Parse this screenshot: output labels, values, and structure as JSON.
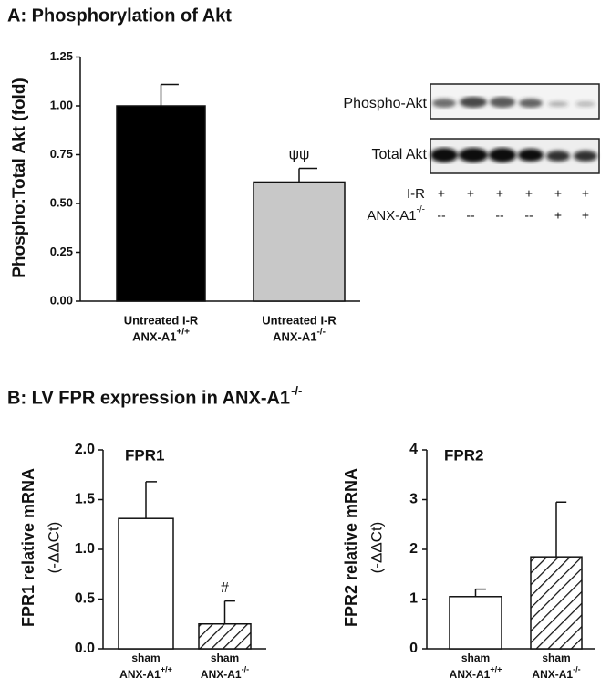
{
  "chart_data": [
    {
      "type": "bar",
      "title": "A: Phosphorylation of Akt",
      "ylabel": "Phospho:Total Akt (fold)",
      "categories": [
        [
          "Untreated I-R",
          "ANX-A1",
          "+/+"
        ],
        [
          "Untreated I-R",
          "ANX-A1",
          "-/-"
        ]
      ],
      "values": [
        1.0,
        0.61
      ],
      "errors": [
        0.11,
        0.07
      ],
      "fills": [
        "#000000",
        "#c8c8c8"
      ],
      "bar_annotations": [
        null,
        "ψψ"
      ],
      "ylim": [
        0,
        1.25
      ],
      "yticks": [
        {
          "value": 0,
          "label": "0.00"
        },
        {
          "value": 0.25,
          "label": "0.25"
        },
        {
          "value": 0.5,
          "label": "0.50"
        },
        {
          "value": 0.75,
          "label": "0.75"
        },
        {
          "value": 1,
          "label": "1.00"
        },
        {
          "value": 1.25,
          "label": "1.25"
        }
      ]
    },
    {
      "type": "bar",
      "title": "FPR1",
      "ylabel": [
        "FPR1 relative mRNA",
        "(-ΔΔCt)"
      ],
      "categories": [
        [
          "sham",
          "ANX-A1",
          "+/+"
        ],
        [
          "sham",
          "ANX-A1",
          "-/-"
        ]
      ],
      "values": [
        1.31,
        0.25
      ],
      "errors": [
        0.37,
        0.23
      ],
      "fills": [
        "#ffffff",
        "hatch"
      ],
      "bar_annotations": [
        null,
        "#"
      ],
      "ylim": [
        0,
        2
      ],
      "yticks": [
        {
          "value": 0,
          "label": "0.0"
        },
        {
          "value": 0.5,
          "label": "0.5"
        },
        {
          "value": 1,
          "label": "1.0"
        },
        {
          "value": 1.5,
          "label": "1.5"
        },
        {
          "value": 2,
          "label": "2.0"
        }
      ]
    },
    {
      "type": "bar",
      "title": "FPR2",
      "ylabel": [
        "FPR2 relative mRNA",
        "(-ΔΔCt)"
      ],
      "categories": [
        [
          "sham",
          "ANX-A1",
          "+/+"
        ],
        [
          "sham",
          "ANX-A1",
          "-/-"
        ]
      ],
      "values": [
        1.05,
        1.85
      ],
      "errors": [
        0.15,
        1.1
      ],
      "fills": [
        "#ffffff",
        "hatch"
      ],
      "bar_annotations": [
        null,
        null
      ],
      "ylim": [
        0,
        4
      ],
      "yticks": [
        0,
        1,
        2,
        3,
        4
      ]
    }
  ],
  "blot": {
    "bands": [
      "Phospho-Akt",
      "Total Akt"
    ],
    "rows": [
      {
        "label": "I-R",
        "sup": null,
        "lanes": [
          "+",
          "+",
          "+",
          "+",
          "+",
          "+"
        ]
      },
      {
        "label": "ANX-A1",
        "sup": "-/-",
        "lanes": [
          "--",
          "--",
          "--",
          "--",
          "+",
          "+"
        ]
      }
    ]
  },
  "panel_b": {
    "title": "B:  LV FPR expression in ANX-A1",
    "title_sup": "-/-"
  }
}
